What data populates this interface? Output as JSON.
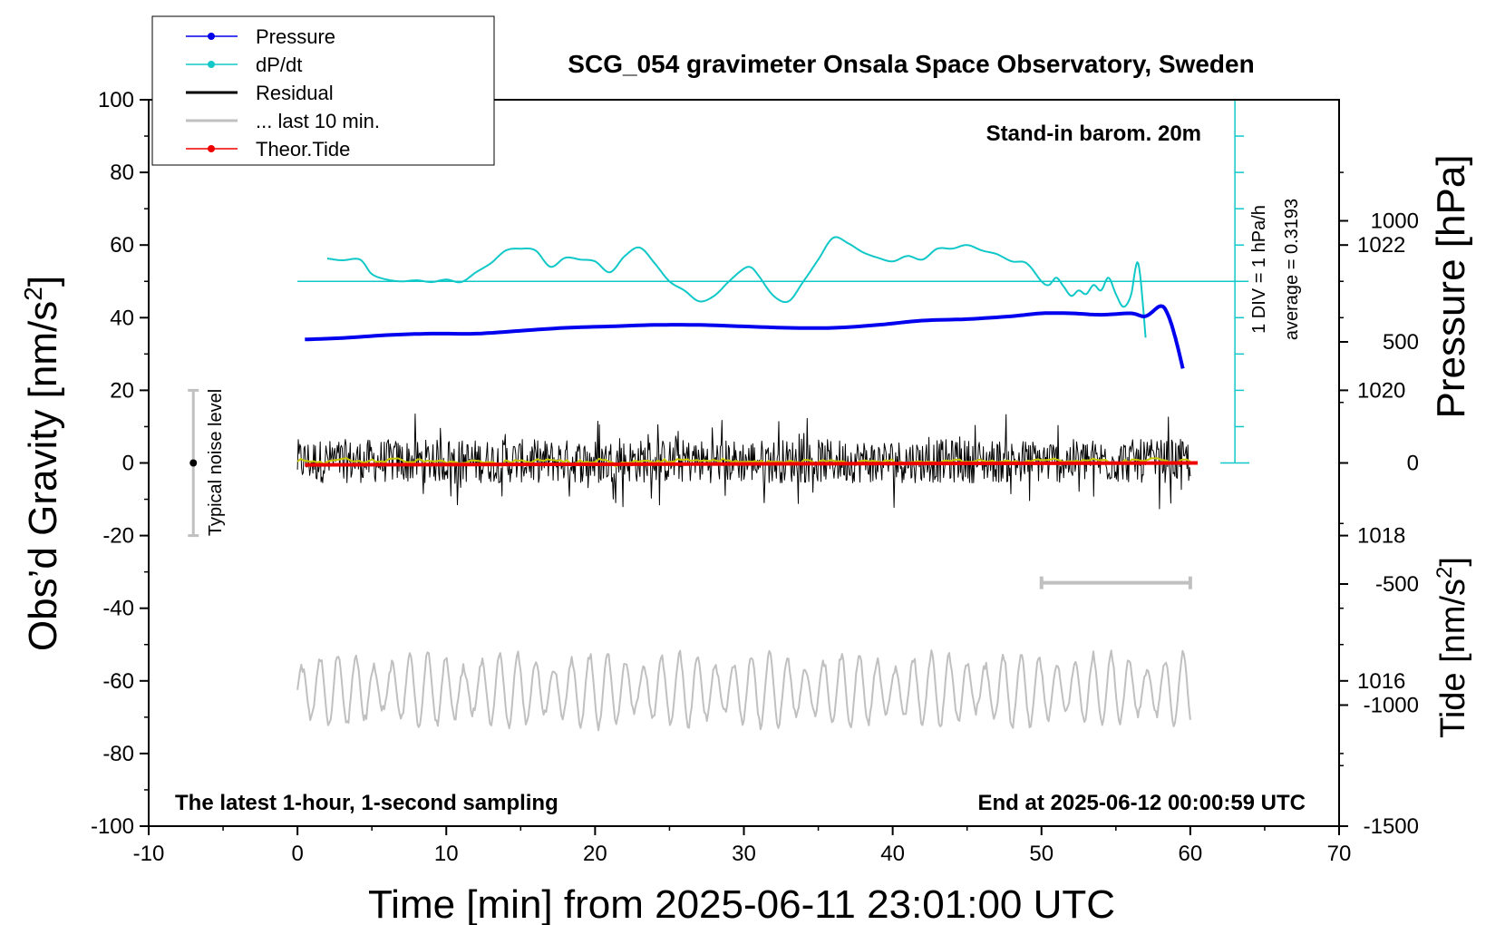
{
  "chart_data": {
    "type": "line",
    "title": "SCG_054 gravimeter Onsala Space Observatory, Sweden",
    "xlabel": "Time [min] from 2025-06-11 23:01:00 UTC",
    "ylabel_left": "Obs’d Gravity [nm/s",
    "ylabel_left_sup": "2",
    "ylabel_left_end": "]",
    "ylabel_right_pressure": "Pressure [hPa]",
    "ylabel_right_tide": "Tide [nm/s",
    "ylabel_right_tide_sup": "2",
    "ylabel_right_tide_end": "]",
    "xlim": [
      -10,
      70
    ],
    "ylim_left": [
      -100,
      100
    ],
    "pressure_ylim": [
      1014,
      1024
    ],
    "tide_ylim": [
      -1500,
      1500
    ],
    "x_ticks": [
      "-10",
      "0",
      "10",
      "20",
      "30",
      "40",
      "50",
      "60",
      "70"
    ],
    "y_ticks_left": [
      "100",
      "80",
      "60",
      "40",
      "20",
      "0",
      "-20",
      "-40",
      "-60",
      "-80",
      "-100"
    ],
    "pressure_ticks": [
      "1022",
      "1020",
      "1018",
      "1016"
    ],
    "tide_ticks": [
      "1000",
      "500",
      "0",
      "-500",
      "-1000",
      "-1500"
    ],
    "annotations": {
      "barometer": "Stand-in barom. 20m",
      "latest": "The latest 1-hour, 1-second sampling",
      "end_at": "End at 2025-06-12 00:00:59 UTC",
      "div": "1 DIV = 1 hPa/h",
      "average": "average = 0.3193",
      "noise": "Typical noise level"
    },
    "legend": [
      {
        "label": "Pressure",
        "color": "#0000ee",
        "marker": true
      },
      {
        "label": "dP/dt",
        "color": "#11c8c8",
        "marker": true
      },
      {
        "label": "Residual",
        "color": "#000000",
        "marker": false
      },
      {
        "label": "... last 10 min.",
        "color": "#c0c0c0",
        "marker": false
      },
      {
        "label": "Theor.Tide",
        "color": "#ee0000",
        "marker": true
      }
    ],
    "colors": {
      "pressure": "#0000ee",
      "dpdt": "#11c8c8",
      "residual": "#000000",
      "residual_smooth": "#c8c800",
      "last10": "#c0c0c0",
      "tide": "#ee0000",
      "scale_bar": "#c0c0c0",
      "noise_bar": "#c0c0c0"
    },
    "series": [
      {
        "name": "Pressure",
        "axis": "pressure",
        "x": [
          0.5,
          3,
          6,
          9,
          12,
          15,
          18,
          21,
          24,
          27,
          30,
          33,
          36,
          39,
          42,
          45,
          48,
          50,
          52,
          54,
          56,
          57,
          58,
          58.5,
          59,
          59.5
        ],
        "values": [
          1020.7,
          1020.72,
          1020.76,
          1020.78,
          1020.78,
          1020.82,
          1020.86,
          1020.88,
          1020.9,
          1020.9,
          1020.88,
          1020.86,
          1020.86,
          1020.9,
          1020.96,
          1020.98,
          1021.02,
          1021.06,
          1021.06,
          1021.04,
          1021.06,
          1021.02,
          1021.16,
          1021.04,
          1020.72,
          1020.3
        ]
      },
      {
        "name": "dP/dt",
        "axis": "left",
        "x": [
          2,
          3,
          4.2,
          5,
          6,
          7,
          8,
          9,
          10,
          11,
          12,
          13,
          14,
          15,
          16,
          17,
          18,
          19,
          20,
          21,
          22,
          23,
          24,
          25,
          26,
          27,
          28,
          29,
          30,
          30.5,
          31,
          32,
          33,
          34,
          35,
          36,
          37,
          38,
          39,
          40,
          41,
          42,
          43,
          44,
          45,
          46,
          47,
          48,
          49,
          50,
          50.5,
          51,
          51.5,
          52,
          52.5,
          53,
          53.5,
          54,
          54.5,
          55,
          55.5,
          56,
          56.5,
          57
        ],
        "values": [
          56.3,
          55.8,
          56,
          52,
          50.5,
          50,
          50.3,
          49.8,
          50.5,
          49.8,
          52.5,
          55,
          58.5,
          59,
          58.5,
          54,
          56.5,
          56,
          55.5,
          52.5,
          57,
          59.3,
          55,
          50,
          47.5,
          44.5,
          46,
          50,
          53.5,
          53.8,
          51.5,
          46,
          44.5,
          50,
          56,
          62,
          60.5,
          58,
          56.5,
          55.5,
          57,
          56,
          59,
          59,
          60,
          58.5,
          57.5,
          55.5,
          55,
          50,
          49,
          51,
          48.5,
          46,
          47.5,
          46.5,
          49,
          47.5,
          51,
          46.5,
          43,
          46,
          55,
          34.5
        ]
      },
      {
        "name": "Residual",
        "axis": "left",
        "x_range": [
          0,
          60
        ],
        "center": 0.5,
        "peak_to_peak": 24
      },
      {
        "name": "... last 10 min.",
        "axis": "left",
        "x_range": [
          0,
          60
        ],
        "center": -62.5,
        "peak_to_peak": 22
      },
      {
        "name": "Theor.Tide",
        "axis": "tide",
        "x": [
          0.5,
          60.5
        ],
        "values": [
          -8,
          0
        ]
      }
    ],
    "noise_bar": {
      "x": -7,
      "center": 0,
      "low": -20,
      "high": 20
    },
    "scale_bar": {
      "x_start": 50,
      "x_end": 60,
      "y": -33
    },
    "pressure_rate_axis": {
      "x": 63,
      "base": 0,
      "top": 100,
      "divisions": 10,
      "zero_line": 50
    },
    "grid": false,
    "legend_position": "top-left"
  }
}
